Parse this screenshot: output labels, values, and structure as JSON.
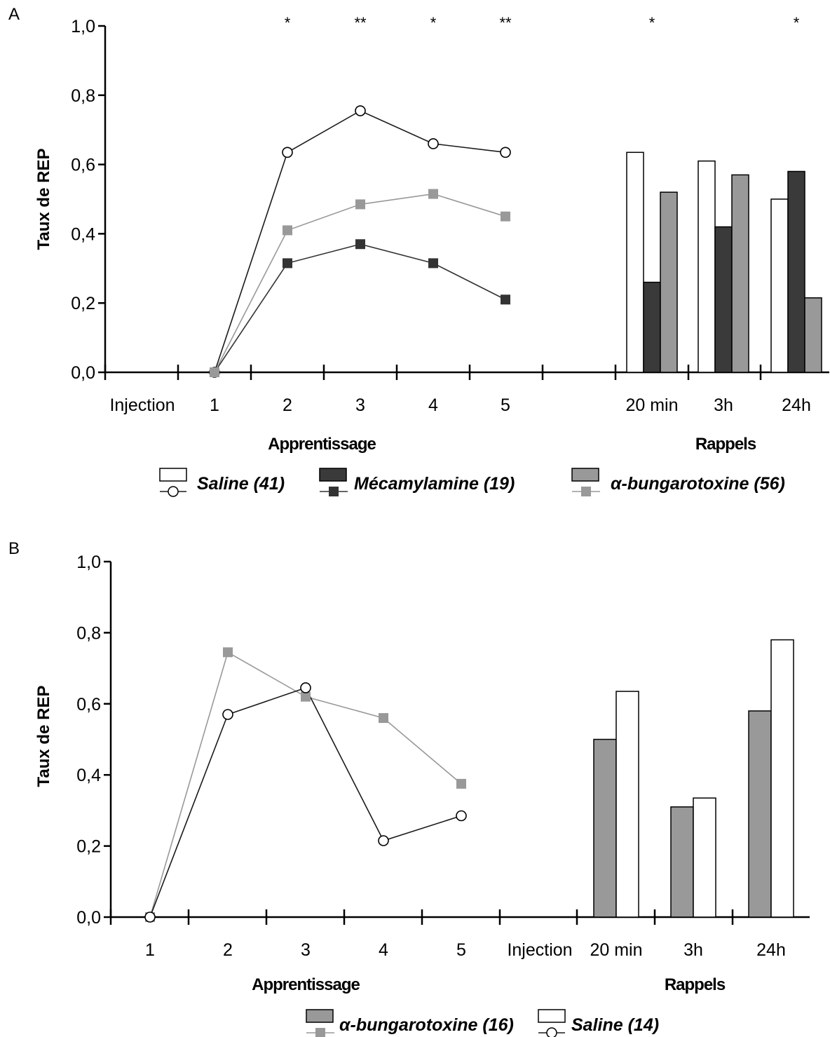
{
  "chart_data": [
    {
      "panel": "A",
      "type": "line+bar",
      "ylabel": "Taux de REP",
      "ylim": [
        0,
        1
      ],
      "yticks": [
        "0,0",
        "0,2",
        "0,4",
        "0,6",
        "0,8",
        "1,0"
      ],
      "x_line_labels": [
        "Injection",
        "1",
        "2",
        "3",
        "4",
        "5"
      ],
      "x_bar_labels": [
        "20 min",
        "3h",
        "24h"
      ],
      "group_labels": {
        "line": "Apprentissage",
        "bar": "Rappels"
      },
      "significance": [
        {
          "at": "2",
          "mark": "*"
        },
        {
          "at": "3",
          "mark": "**"
        },
        {
          "at": "4",
          "mark": "*"
        },
        {
          "at": "5",
          "mark": "**"
        },
        {
          "at": "20 min",
          "mark": "*"
        },
        {
          "at": "24h",
          "mark": "*"
        }
      ],
      "series": [
        {
          "name": "Saline (41)",
          "line_color": "#1a1a1a",
          "marker": "circle",
          "bar_color": "#ffffff",
          "line_values": [
            0.0,
            0.635,
            0.755,
            0.66,
            0.635
          ],
          "bar_values": [
            0.635,
            0.61,
            0.5
          ]
        },
        {
          "name": "Mécamylamine (19)",
          "line_color": "#333333",
          "marker": "square",
          "bar_color": "#3a3a3a",
          "line_values": [
            0.0,
            0.315,
            0.37,
            0.315,
            0.21
          ],
          "bar_values": [
            0.26,
            0.42,
            0.58
          ]
        },
        {
          "name": "α-bungarotoxine (56)",
          "line_color": "#999999",
          "marker": "square",
          "bar_color": "#999999",
          "line_values": [
            0.0,
            0.41,
            0.485,
            0.515,
            0.45
          ],
          "bar_values": [
            0.52,
            0.57,
            0.215
          ]
        }
      ],
      "legend_position": "bottom"
    },
    {
      "panel": "B",
      "type": "line+bar",
      "ylabel": "Taux de REP",
      "ylim": [
        0,
        1
      ],
      "yticks": [
        "0,0",
        "0,2",
        "0,4",
        "0,6",
        "0,8",
        "1,0"
      ],
      "x_line_labels": [
        "1",
        "2",
        "3",
        "4",
        "5",
        "Injection"
      ],
      "x_bar_labels": [
        "20 min",
        "3h",
        "24h"
      ],
      "group_labels": {
        "line": "Apprentissage",
        "bar": "Rappels"
      },
      "significance": [],
      "series": [
        {
          "name": "α-bungarotoxine (16)",
          "line_color": "#999999",
          "marker": "square",
          "bar_color": "#999999",
          "line_values": [
            0.0,
            0.745,
            0.62,
            0.56,
            0.375
          ],
          "bar_values": [
            0.5,
            0.31,
            0.58
          ]
        },
        {
          "name": "Saline (14)",
          "line_color": "#1a1a1a",
          "marker": "circle",
          "bar_color": "#ffffff",
          "line_values": [
            0.0,
            0.57,
            0.645,
            0.215,
            0.285
          ],
          "bar_values": [
            0.635,
            0.335,
            0.78
          ]
        }
      ],
      "legend_position": "bottom"
    }
  ]
}
